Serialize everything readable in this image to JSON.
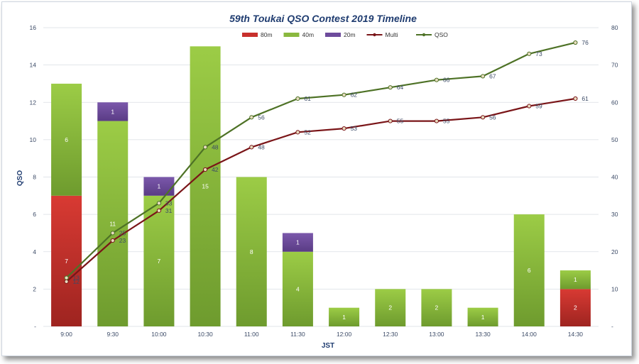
{
  "chart_data": {
    "type": "bar",
    "title": "59th Toukai QSO Contest 2019 Timeline",
    "xlabel": "JST",
    "ylabel": "QSO",
    "ylim": [
      0,
      16
    ],
    "y2lim": [
      0,
      80
    ],
    "yticks": [
      "-",
      "2",
      "4",
      "6",
      "8",
      "10",
      "12",
      "14",
      "16"
    ],
    "y2ticks": [
      "-",
      "10",
      "20",
      "30",
      "40",
      "50",
      "60",
      "70",
      "80"
    ],
    "categories": [
      "9:00",
      "9:30",
      "10:00",
      "10:30",
      "11:00",
      "11:30",
      "12:00",
      "12:30",
      "13:00",
      "13:30",
      "14:00",
      "14:30"
    ],
    "series": [
      {
        "name": "80m",
        "kind": "bar",
        "axis": "left",
        "color": "#c8302c",
        "values": [
          7,
          0,
          0,
          0,
          0,
          0,
          0,
          0,
          0,
          0,
          0,
          2
        ],
        "labels": [
          "7",
          "",
          "",
          "",
          "",
          "",
          "",
          "",
          "",
          "",
          "",
          "2"
        ]
      },
      {
        "name": "40m",
        "kind": "bar",
        "axis": "left",
        "color": "#8ab83e",
        "values": [
          6,
          11,
          7,
          15,
          8,
          4,
          1,
          2,
          2,
          1,
          6,
          1
        ],
        "labels": [
          "6",
          "11",
          "7",
          "15",
          "8",
          "4",
          "1",
          "2",
          "2",
          "1",
          "6",
          "1"
        ]
      },
      {
        "name": "20m",
        "kind": "bar",
        "axis": "left",
        "color": "#6d4b9c",
        "values": [
          0,
          1,
          1,
          0,
          0,
          1,
          0,
          0,
          0,
          0,
          0,
          0
        ],
        "labels": [
          "",
          "1",
          "1",
          "",
          "",
          "1",
          "",
          "",
          "",
          "",
          "",
          ""
        ]
      },
      {
        "name": "Multi",
        "kind": "line",
        "axis": "right",
        "color": "#7a1518",
        "values": [
          12,
          23,
          31,
          42,
          48,
          52,
          53,
          55,
          55,
          56,
          59,
          61
        ],
        "labels": [
          "12",
          "23",
          "31",
          "42",
          "48",
          "52",
          "53",
          "55",
          "55",
          "56",
          "59",
          "61"
        ]
      },
      {
        "name": "QSO",
        "kind": "line",
        "axis": "right",
        "color": "#4e7226",
        "values": [
          13,
          25,
          33,
          48,
          56,
          61,
          62,
          64,
          66,
          67,
          73,
          76
        ],
        "labels": [
          "13",
          "25",
          "33",
          "48",
          "56",
          "61",
          "62",
          "64",
          "66",
          "67",
          "73",
          "76"
        ]
      }
    ],
    "legend": [
      "80m",
      "40m",
      "20m",
      "Multi",
      "QSO"
    ],
    "legend_position": "top-center",
    "grid": true
  }
}
